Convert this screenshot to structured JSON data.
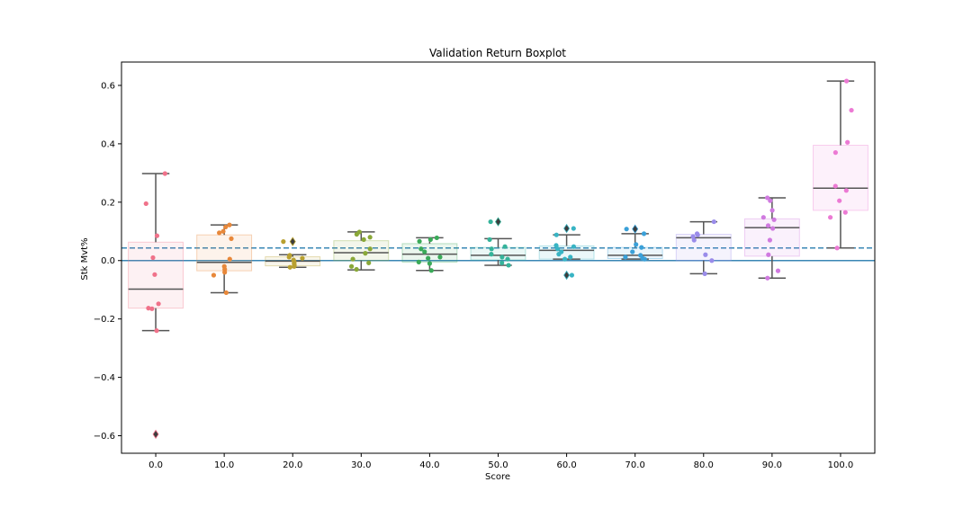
{
  "chart_data": {
    "type": "boxplot",
    "title": "Validation Return Boxplot",
    "xlabel": "Score",
    "ylabel": "Stk Mvt%",
    "ylim": [
      -0.66,
      0.68
    ],
    "yticks": [
      -0.6,
      -0.4,
      -0.2,
      0.0,
      0.2,
      0.4,
      0.6
    ],
    "ytick_labels": [
      "−0.6",
      "−0.4",
      "−0.2",
      "0.0",
      "0.2",
      "0.4",
      "0.6"
    ],
    "categories": [
      "0.0",
      "10.0",
      "20.0",
      "30.0",
      "40.0",
      "50.0",
      "60.0",
      "70.0",
      "80.0",
      "90.0",
      "100.0"
    ],
    "reference_lines": [
      {
        "style": "solid",
        "value": 0.0,
        "color": "#3a87b5"
      },
      {
        "style": "dashed",
        "value": 0.043,
        "color": "#3a87b5"
      }
    ],
    "boxes": [
      {
        "category": "0.0",
        "color": "#f0728a",
        "q1": -0.163,
        "median": -0.098,
        "q3": 0.063,
        "whisker_low": -0.24,
        "whisker_high": 0.298,
        "outliers": [
          -0.595
        ],
        "points": [
          0.298,
          0.195,
          0.085,
          0.01,
          -0.048,
          -0.148,
          -0.163,
          -0.165,
          -0.24
        ]
      },
      {
        "category": "10.0",
        "color": "#e8883a",
        "q1": -0.035,
        "median": -0.006,
        "q3": 0.088,
        "whisker_low": -0.11,
        "whisker_high": 0.122,
        "outliers": [],
        "points": [
          0.122,
          0.115,
          0.1,
          0.095,
          0.075,
          0.005,
          -0.02,
          -0.03,
          -0.04,
          -0.05,
          -0.11
        ]
      },
      {
        "category": "20.0",
        "color": "#b8a030",
        "q1": -0.018,
        "median": -0.002,
        "q3": 0.013,
        "whisker_low": -0.023,
        "whisker_high": 0.02,
        "outliers": [
          0.065
        ],
        "points": [
          0.065,
          0.018,
          0.012,
          0.008,
          0.002,
          -0.004,
          -0.01,
          -0.016,
          -0.02,
          -0.023
        ]
      },
      {
        "category": "30.0",
        "color": "#8aa838",
        "q1": 0.0,
        "median": 0.027,
        "q3": 0.068,
        "whisker_low": -0.032,
        "whisker_high": 0.098,
        "outliers": [],
        "points": [
          0.098,
          0.09,
          0.08,
          0.072,
          0.04,
          0.025,
          0.005,
          -0.008,
          -0.02,
          -0.03
        ]
      },
      {
        "category": "40.0",
        "color": "#3aaa58",
        "q1": -0.005,
        "median": 0.022,
        "q3": 0.058,
        "whisker_low": -0.034,
        "whisker_high": 0.078,
        "outliers": [],
        "points": [
          0.078,
          0.072,
          0.066,
          0.04,
          0.03,
          0.012,
          0.008,
          -0.005,
          -0.01,
          -0.034
        ]
      },
      {
        "category": "50.0",
        "color": "#35b39a",
        "q1": 0.002,
        "median": 0.018,
        "q3": 0.045,
        "whisker_low": -0.016,
        "whisker_high": 0.075,
        "outliers": [
          0.133
        ],
        "points": [
          0.133,
          0.072,
          0.048,
          0.04,
          0.022,
          0.012,
          0.005,
          -0.008,
          -0.016
        ]
      },
      {
        "category": "60.0",
        "color": "#38b4c4",
        "q1": 0.005,
        "median": 0.035,
        "q3": 0.05,
        "whisker_low": 0.005,
        "whisker_high": 0.088,
        "outliers": [
          0.11,
          -0.05
        ],
        "points": [
          0.11,
          0.088,
          0.052,
          0.048,
          0.04,
          0.03,
          0.022,
          0.012,
          0.005,
          -0.05
        ]
      },
      {
        "category": "70.0",
        "color": "#3aa0d8",
        "q1": 0.007,
        "median": 0.018,
        "q3": 0.045,
        "whisker_low": 0.005,
        "whisker_high": 0.092,
        "outliers": [
          0.108
        ],
        "points": [
          0.108,
          0.092,
          0.055,
          0.045,
          0.03,
          0.018,
          0.012,
          0.008,
          0.005
        ]
      },
      {
        "category": "80.0",
        "color": "#9a8cea",
        "q1": 0.0,
        "median": 0.078,
        "q3": 0.09,
        "whisker_low": -0.045,
        "whisker_high": 0.133,
        "outliers": [],
        "points": [
          0.133,
          0.092,
          0.088,
          0.082,
          0.07,
          0.02,
          0.0,
          -0.045
        ]
      },
      {
        "category": "90.0",
        "color": "#d07ae0",
        "q1": 0.015,
        "median": 0.113,
        "q3": 0.143,
        "whisker_low": -0.06,
        "whisker_high": 0.215,
        "outliers": [],
        "points": [
          0.215,
          0.205,
          0.172,
          0.148,
          0.14,
          0.12,
          0.11,
          0.07,
          0.02,
          -0.035,
          -0.06
        ]
      },
      {
        "category": "100.0",
        "color": "#ec7ad4",
        "q1": 0.172,
        "median": 0.248,
        "q3": 0.395,
        "whisker_low": 0.043,
        "whisker_high": 0.615,
        "outliers": [],
        "points": [
          0.615,
          0.515,
          0.405,
          0.37,
          0.255,
          0.24,
          0.205,
          0.165,
          0.148,
          0.043
        ]
      }
    ]
  }
}
